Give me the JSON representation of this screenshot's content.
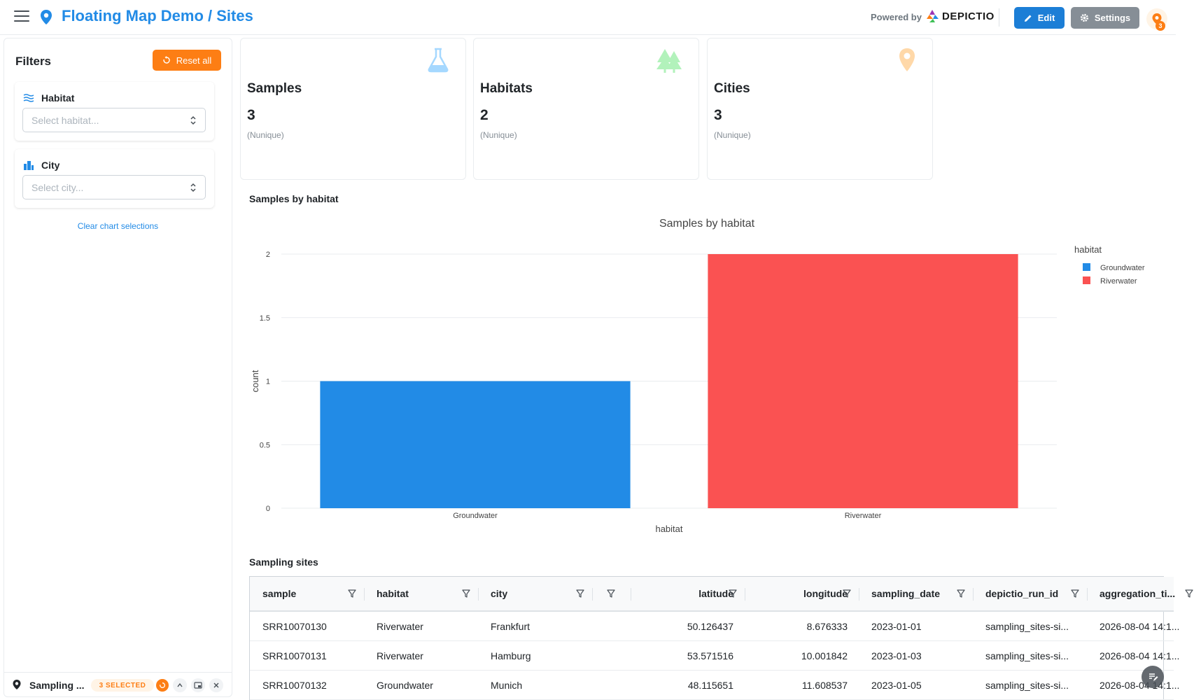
{
  "header": {
    "title": "Floating Map Demo / Sites",
    "powered_by": "Powered by",
    "brand": "DEPICTIO",
    "edit_label": "Edit",
    "settings_label": "Settings",
    "notification_count": "3",
    "accent_color": "#228be6"
  },
  "sidebar": {
    "title": "Filters",
    "reset_label": "Reset all",
    "filters": [
      {
        "label": "Habitat",
        "placeholder": "Select habitat..."
      },
      {
        "label": "City",
        "placeholder": "Select city..."
      }
    ],
    "clear_label": "Clear chart selections",
    "floatbar": {
      "title": "Sampling ...",
      "badge": "3 SELECTED"
    }
  },
  "metrics": [
    {
      "title": "Samples",
      "value": "3",
      "note": "(Nunique)",
      "icon": "flask-icon"
    },
    {
      "title": "Habitats",
      "value": "2",
      "note": "(Nunique)",
      "icon": "trees-icon"
    },
    {
      "title": "Cities",
      "value": "3",
      "note": "(Nunique)",
      "icon": "map-pin-icon"
    }
  ],
  "chart_section_title": "Samples by habitat",
  "chart_data": {
    "type": "bar",
    "title": "Samples by habitat",
    "categories": [
      "Groundwater",
      "Riverwater"
    ],
    "values": [
      1,
      2
    ],
    "colors": [
      "#228be6",
      "#fa5252"
    ],
    "xlabel": "habitat",
    "ylabel": "count",
    "ylim": [
      0,
      2
    ],
    "yticks": [
      "0",
      "0.5",
      "1",
      "1.5",
      "2"
    ],
    "legend_title": "habitat",
    "legend_placement": "top-right",
    "grid": true
  },
  "table_section_title": "Sampling sites",
  "table": {
    "columns": [
      "sample",
      "habitat",
      "city",
      "",
      "latitude",
      "longitude",
      "sampling_date",
      "depictio_run_id",
      "aggregation_ti..."
    ],
    "rows": [
      [
        "SRR10070130",
        "Riverwater",
        "Frankfurt",
        "",
        "50.126437",
        "8.676333",
        "2023-01-01",
        "sampling_sites-si...",
        "2026-08-04 14:1..."
      ],
      [
        "SRR10070131",
        "Riverwater",
        "Hamburg",
        "",
        "53.571516",
        "10.001842",
        "2023-01-03",
        "sampling_sites-si...",
        "2026-08-04 14:1..."
      ],
      [
        "SRR10070132",
        "Groundwater",
        "Munich",
        "",
        "48.115651",
        "11.608537",
        "2023-01-05",
        "sampling_sites-si...",
        "2026-08-04 14:1..."
      ]
    ]
  }
}
